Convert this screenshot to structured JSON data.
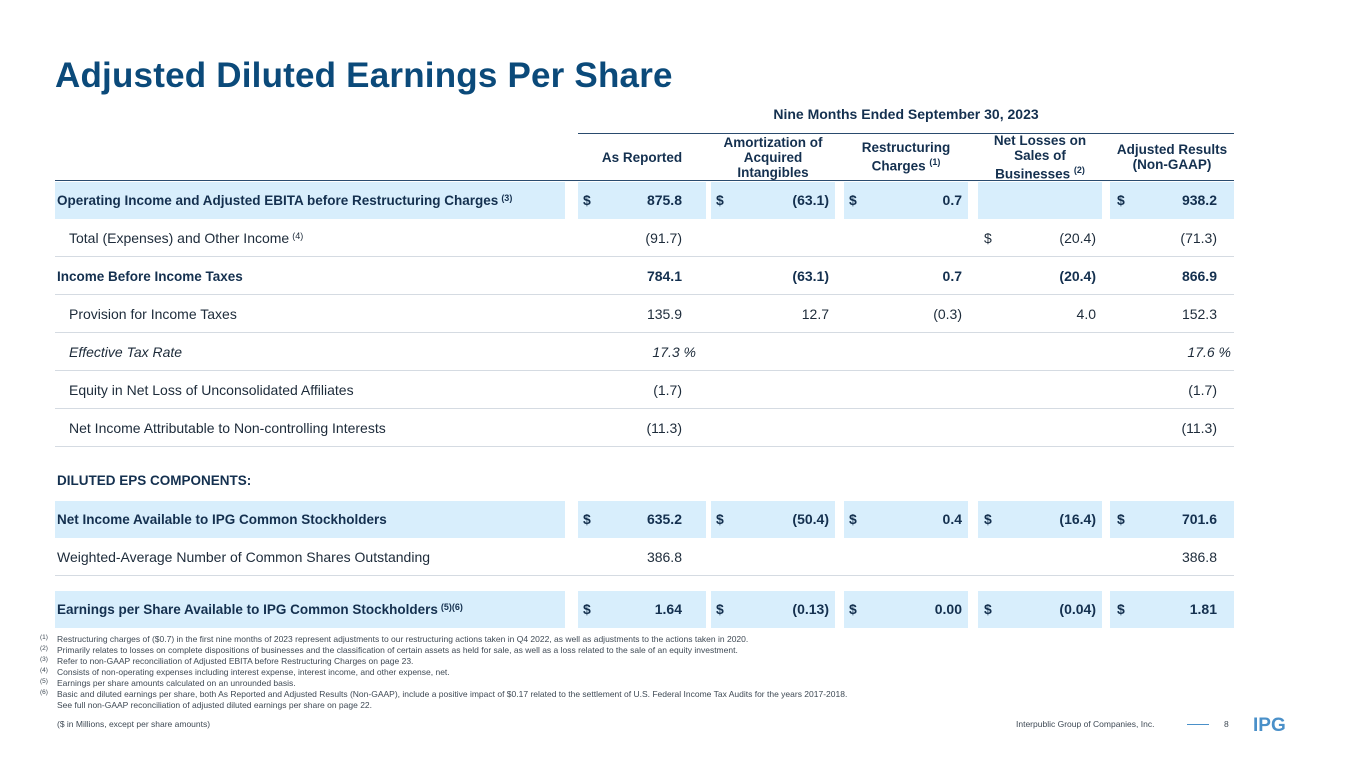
{
  "title": "Adjusted Diluted Earnings Per Share",
  "period": "Nine Months Ended September 30, 2023",
  "columns": [
    {
      "label": "As Reported",
      "sup": ""
    },
    {
      "label": "Amortization of Acquired Intangibles",
      "sup": ""
    },
    {
      "label": "Restructuring Charges",
      "sup": "(1)"
    },
    {
      "label": "Net Losses on Sales of Businesses",
      "sup": "(2)"
    },
    {
      "label": "Adjusted Results (Non-GAAP)",
      "sup": ""
    }
  ],
  "rows": [
    {
      "label": "Operating Income and Adjusted EBITA before Restructuring Charges",
      "sup": "(3)",
      "style": "bold-hl",
      "values": [
        "875.8",
        "(63.1)",
        "0.7",
        "",
        "938.2"
      ],
      "currency": [
        "$",
        "$",
        "$",
        "",
        "$"
      ]
    },
    {
      "label": "Total (Expenses) and Other Income",
      "sup": "(4)",
      "style": "indent",
      "values": [
        "(91.7)",
        "",
        "",
        "(20.4)",
        "(71.3)"
      ],
      "currency": [
        "",
        "",
        "",
        "$",
        ""
      ]
    },
    {
      "label": "Income Before Income Taxes",
      "sup": "",
      "style": "bold",
      "values": [
        "784.1",
        "(63.1)",
        "0.7",
        "(20.4)",
        "866.9"
      ],
      "currency": [
        "",
        "",
        "",
        "",
        ""
      ]
    },
    {
      "label": "Provision for Income Taxes",
      "sup": "",
      "style": "indent",
      "values": [
        "135.9",
        "12.7",
        "(0.3)",
        "4.0",
        "152.3"
      ],
      "currency": [
        "",
        "",
        "",
        "",
        ""
      ]
    },
    {
      "label": "Effective Tax Rate",
      "sup": "",
      "style": "indent-italic",
      "values": [
        "17.3 %",
        "",
        "",
        "",
        "17.6 %"
      ],
      "currency": [
        "",
        "",
        "",
        "",
        ""
      ]
    },
    {
      "label": "Equity in Net Loss of Unconsolidated Affiliates",
      "sup": "",
      "style": "indent",
      "values": [
        "(1.7)",
        "",
        "",
        "",
        "(1.7)"
      ],
      "currency": [
        "",
        "",
        "",
        "",
        ""
      ]
    },
    {
      "label": "Net Income Attributable to Non-controlling Interests",
      "sup": "",
      "style": "indent",
      "values": [
        "(11.3)",
        "",
        "",
        "",
        "(11.3)"
      ],
      "currency": [
        "",
        "",
        "",
        "",
        ""
      ]
    }
  ],
  "section_label": "DILUTED EPS COMPONENTS:",
  "eps_rows": [
    {
      "label": "Net Income Available to IPG Common Stockholders",
      "sup": "",
      "style": "bold-hl",
      "values": [
        "635.2",
        "(50.4)",
        "0.4",
        "(16.4)",
        "701.6"
      ],
      "currency": [
        "$",
        "$",
        "$",
        "$",
        "$"
      ]
    },
    {
      "label": "Weighted-Average Number of Common Shares Outstanding",
      "sup": "",
      "style": "plain",
      "values": [
        "386.8",
        "",
        "",
        "",
        "386.8"
      ],
      "currency": [
        "",
        "",
        "",
        "",
        ""
      ]
    },
    {
      "label": "Earnings per Share Available to IPG Common Stockholders",
      "sup": "(5)(6)",
      "style": "bold-hl",
      "values": [
        "1.64",
        "(0.13)",
        "0.00",
        "(0.04)",
        "1.81"
      ],
      "currency": [
        "$",
        "$",
        "$",
        "$",
        "$"
      ]
    }
  ],
  "footnotes": [
    {
      "mark": "(1)",
      "text": "Restructuring charges of ($0.7) in the first nine months of 2023 represent adjustments to our restructuring actions taken in Q4 2022, as well as adjustments to the actions taken in 2020."
    },
    {
      "mark": "(2)",
      "text": "Primarily relates to losses on complete dispositions of businesses and the classification of certain assets as held for sale, as well as a loss related to the sale of an equity investment."
    },
    {
      "mark": "(3)",
      "text": "Refer to non-GAAP reconciliation of Adjusted EBITA before Restructuring Charges on page 23."
    },
    {
      "mark": "(4)",
      "text": "Consists of non-operating expenses including interest expense, interest income, and other expense, net."
    },
    {
      "mark": "(5)",
      "text": "Earnings per share amounts calculated on an unrounded basis."
    },
    {
      "mark": "(6)",
      "text": "Basic and diluted earnings per share, both As Reported and Adjusted Results (Non-GAAP), include a positive impact of $0.17 related to the settlement of U.S. Federal Income Tax Audits for the years 2017-2018."
    },
    {
      "mark": "",
      "text": "See full non-GAAP reconciliation of adjusted diluted earnings per share on page 22."
    }
  ],
  "units_note": "($ in Millions, except per share amounts)",
  "company": "Interpublic Group of Companies, Inc.",
  "page_number": "8",
  "logo_text": "IPG",
  "colors": {
    "title": "#0b4a7a",
    "highlight": "#d8eefc",
    "accent": "#4a90c9"
  }
}
